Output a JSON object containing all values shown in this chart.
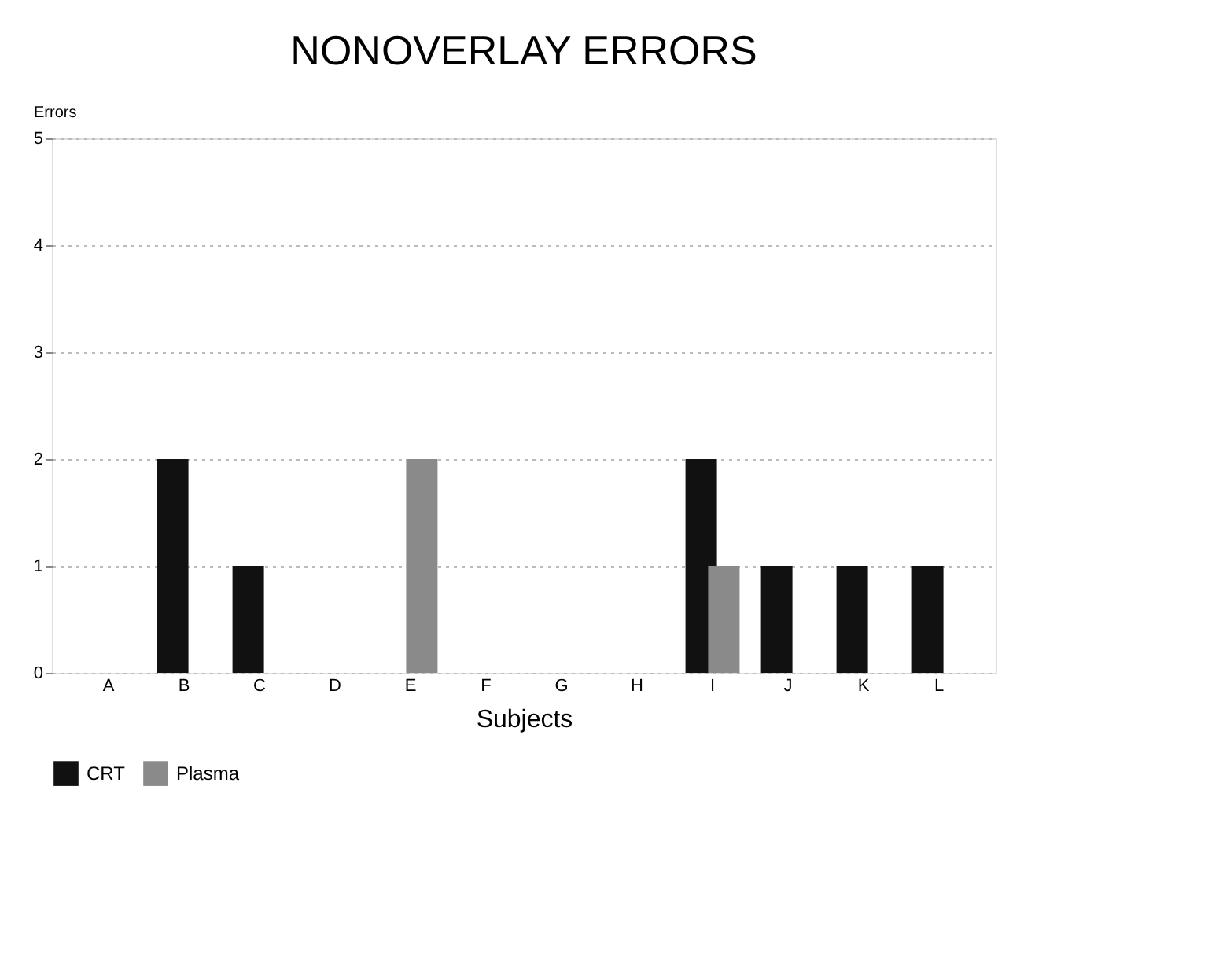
{
  "chart_data": {
    "type": "bar",
    "title": "NONOVERLAY ERRORS",
    "xlabel": "Subjects",
    "ylabel": "Errors",
    "categories": [
      "A",
      "B",
      "C",
      "D",
      "E",
      "F",
      "G",
      "H",
      "I",
      "J",
      "K",
      "L"
    ],
    "series": [
      {
        "name": "CRT",
        "color": "#111111",
        "values": [
          0,
          2,
          1,
          0,
          0,
          0,
          0,
          0,
          2,
          1,
          1,
          1
        ]
      },
      {
        "name": "Plasma",
        "color": "#8a8a8a",
        "values": [
          0,
          0,
          0,
          0,
          2,
          0,
          0,
          0,
          1,
          0,
          0,
          0
        ]
      }
    ],
    "ylim": [
      0,
      5
    ],
    "yticks": [
      0,
      1,
      2,
      3,
      4,
      5
    ],
    "grid": "y",
    "legend": "bottom"
  }
}
